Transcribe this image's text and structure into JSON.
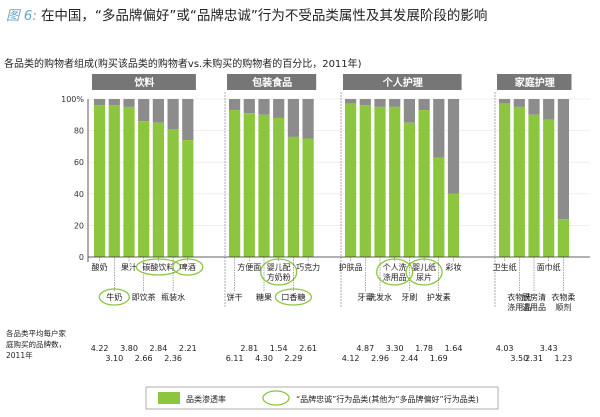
{
  "header": {
    "fig_label": "图 6:",
    "title": "在中国，“多品牌偏好”或“品牌忠诚”行为不受品类属性及其发展阶段的影响"
  },
  "subtitle": "各品类的购物者组成(购买该品类的购物者vs.未购买的购物者的百分比，2011年)",
  "colors": {
    "penetration": "#8cc63f",
    "remainder": "#8c8c8c",
    "group_header": "#767676",
    "highlight_circle": "#8cc63f"
  },
  "chart_data": {
    "type": "bar",
    "stacked": true,
    "ylim": [
      0,
      100
    ],
    "yticks": [
      "0",
      "20",
      "40",
      "60",
      "80",
      "100%"
    ],
    "groups": [
      {
        "name": "饮料",
        "categories": [
          "酸奶",
          "牛奶",
          "果汁",
          "即饮茶",
          "碳酸饮料",
          "瓶装水",
          "啤酒"
        ]
      },
      {
        "name": "包装食品",
        "categories": [
          "饼干",
          "方便面",
          "糖果",
          "婴儿配方奶粉",
          "口香糖",
          "巧克力"
        ]
      },
      {
        "name": "个人护理",
        "categories": [
          "护肤品",
          "牙膏",
          "洗发水",
          "个人洗涤用品",
          "牙刷",
          "婴儿纸尿片",
          "护发素",
          "彩妆"
        ]
      },
      {
        "name": "家庭护理",
        "categories": [
          "卫生纸",
          "衣物洗涤用品",
          "厨房清洁用品",
          "面巾纸",
          "衣物柔顺剂"
        ]
      }
    ],
    "categories": [
      "酸奶",
      "牛奶",
      "果汁",
      "即饮茶",
      "碳酸饮料",
      "瓶装水",
      "啤酒",
      "饼干",
      "方便面",
      "糖果",
      "婴儿配方奶粉",
      "口香糖",
      "巧克力",
      "护肤品",
      "牙膏",
      "洗发水",
      "个人洗涤用品",
      "牙刷",
      "婴儿纸尿片",
      "护发素",
      "彩妆",
      "卫生纸",
      "衣物洗涤用品",
      "厨房清洁用品",
      "面巾纸",
      "衣物柔顺剂"
    ],
    "x_label_rows": [
      0,
      1,
      0,
      1,
      0,
      1,
      0,
      1,
      0,
      1,
      0,
      1,
      0,
      0,
      1,
      1,
      0,
      1,
      0,
      1,
      0,
      0,
      1,
      1,
      0,
      1
    ],
    "highlighted": [
      "牛奶",
      "碳酸饮料",
      "啤酒",
      "婴儿配方奶粉",
      "口香糖",
      "个人洗涤用品",
      "婴儿纸尿片"
    ],
    "series": [
      {
        "name": "品类渗透率",
        "values": [
          96,
          96,
          95,
          86,
          85,
          81,
          74,
          93,
          91,
          90,
          88,
          76,
          75,
          97,
          96,
          95,
          95,
          85,
          93,
          63,
          40,
          97,
          95,
          90,
          87,
          24
        ]
      }
    ],
    "avg_brands": {
      "label": "各品类平均每户家庭购买的品牌数，2011年",
      "values": [
        "4.22",
        "3.10",
        "3.80",
        "2.66",
        "2.84",
        "2.36",
        "2.21",
        "6.11",
        "2.81",
        "4.30",
        "1.54",
        "2.29",
        "2.61",
        "4.12",
        "4.87",
        "2.96",
        "3.30",
        "2.44",
        "1.78",
        "1.69",
        "1.64",
        "4.03",
        "3.50",
        "2.31",
        "3.43",
        "1.23"
      ],
      "rows": [
        0,
        1,
        0,
        1,
        0,
        1,
        0,
        1,
        0,
        1,
        0,
        1,
        0,
        1,
        0,
        1,
        0,
        1,
        0,
        1,
        0,
        0,
        1,
        1,
        0,
        1
      ]
    },
    "legend": {
      "penetration": "品类渗透率",
      "circled": "“品牌忠诚”行为品类(其他为“多品牌偏好”行为品类)",
      "placement": "bottom"
    }
  }
}
